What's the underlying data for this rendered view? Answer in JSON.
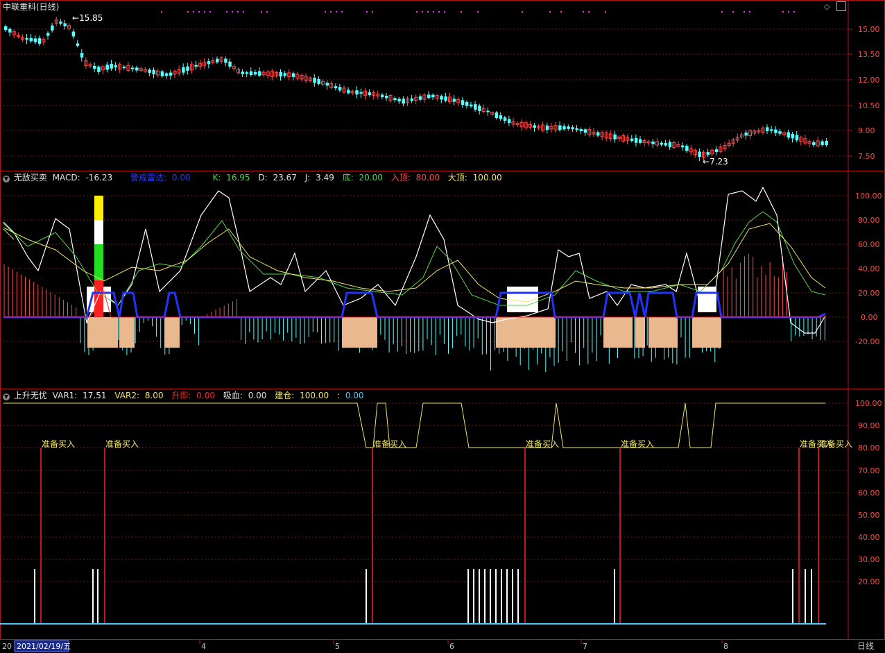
{
  "colors": {
    "frame": "#b3141b",
    "grid": "#7a1a1a",
    "up": "#ff4a4a",
    "down": "#54ffff",
    "white": "#ffffff",
    "yellow": "#f0e36b",
    "green": "#52d64d",
    "blue": "#2233ff",
    "skyblue": "#4fc8ff",
    "peach": "#eab88f",
    "magenta": "#ff2bff",
    "red": "#ff2020"
  },
  "panel1": {
    "title": "中联重科(日线)",
    "high_label": "15.85",
    "low_label": "7.23",
    "y_ticks": [
      "15.00",
      "13.50",
      "12.00",
      "10.50",
      "9.00",
      "7.50"
    ],
    "icons": [
      "diamond-icon",
      "restore-icon"
    ]
  },
  "panel2": {
    "name": "无敌买卖",
    "macd_label": "MACD:",
    "macd_value": "-16.23",
    "alert_label": "警戒雷达:",
    "alert_value": "0.00",
    "k_label": "K:",
    "k_value": "16.95",
    "d_label": "D:",
    "d_value": "23.67",
    "j_label": "J:",
    "j_value": "3.49",
    "bottom_label": "底:",
    "bottom_value": "20.00",
    "entry_label": "入顶:",
    "entry_value": "80.00",
    "top_label": "大顶:",
    "top_value": "100.00",
    "y_ticks": [
      "100.00",
      "80.00",
      "60.00",
      "40.00",
      "20.00",
      "0.00",
      "-20.00"
    ]
  },
  "panel3": {
    "name": "上升无忧",
    "var1_label": "VAR1:",
    "var1_value": "17.51",
    "var2_label": "VAR2:",
    "var2_value": "8.00",
    "rise_label": "升即:",
    "rise_value": "0.00",
    "suck_label": "吸血:",
    "suck_value": "0.00",
    "build_label": "建仓:",
    "build_value": "100.00",
    "extra_value": "0.00",
    "signal_text": "准备买入",
    "signal_text_last": "准备买入",
    "y_ticks": [
      "100.00",
      "90.00",
      "80.00",
      "70.00",
      "60.00",
      "50.00",
      "40.00",
      "30.00",
      "20.00"
    ]
  },
  "footer": {
    "year_prefix": "20",
    "date_box": "2021/02/19/五",
    "months": [
      "4",
      "5",
      "6",
      "7",
      "8"
    ],
    "period": "日线"
  }
}
